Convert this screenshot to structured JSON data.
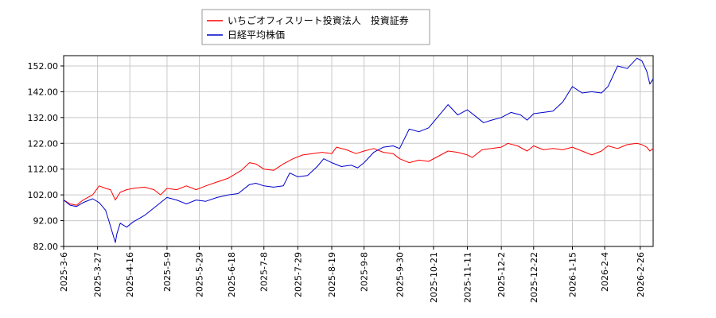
{
  "chart_data": {
    "type": "line",
    "title": "",
    "xlabel": "",
    "ylabel": "",
    "ylim": [
      82,
      156
    ],
    "yticks": [
      82.0,
      92.0,
      102.0,
      112.0,
      122.0,
      132.0,
      142.0,
      152.0
    ],
    "ytick_labels": [
      "82.00",
      "92.00",
      "102.00",
      "112.00",
      "122.00",
      "132.00",
      "142.00",
      "152.00"
    ],
    "xlim": [
      "2025-03-06",
      "2026-03-06"
    ],
    "xticks": [
      "2025-3-6",
      "2025-3-27",
      "2025-4-16",
      "2025-5-9",
      "2025-5-29",
      "2025-6-18",
      "2025-7-8",
      "2025-7-29",
      "2025-8-19",
      "2025-9-8",
      "2025-9-30",
      "2025-10-21",
      "2025-11-11",
      "2025-12-2",
      "2025-12-22",
      "2026-1-15",
      "2026-2-4",
      "2026-2-26"
    ],
    "grid": true,
    "legend_position": "top",
    "series": [
      {
        "name": "いちごオフィスリート投資法人　投資証券",
        "color": "#ff0000",
        "points": [
          [
            "2025-03-06",
            100.0
          ],
          [
            "2025-03-10",
            98.5
          ],
          [
            "2025-03-14",
            98.0
          ],
          [
            "2025-03-18",
            100.0
          ],
          [
            "2025-03-24",
            102.0
          ],
          [
            "2025-03-28",
            105.5
          ],
          [
            "2025-04-01",
            104.5
          ],
          [
            "2025-04-04",
            104.0
          ],
          [
            "2025-04-07",
            100.0
          ],
          [
            "2025-04-10",
            103.0
          ],
          [
            "2025-04-14",
            104.0
          ],
          [
            "2025-04-18",
            104.5
          ],
          [
            "2025-04-25",
            105.0
          ],
          [
            "2025-05-01",
            104.0
          ],
          [
            "2025-05-05",
            102.0
          ],
          [
            "2025-05-09",
            104.5
          ],
          [
            "2025-05-15",
            104.0
          ],
          [
            "2025-05-21",
            105.5
          ],
          [
            "2025-05-27",
            104.0
          ],
          [
            "2025-06-02",
            105.5
          ],
          [
            "2025-06-09",
            107.0
          ],
          [
            "2025-06-16",
            108.5
          ],
          [
            "2025-06-20",
            110.0
          ],
          [
            "2025-06-24",
            111.5
          ],
          [
            "2025-06-29",
            114.5
          ],
          [
            "2025-07-03",
            114.0
          ],
          [
            "2025-07-08",
            112.0
          ],
          [
            "2025-07-14",
            111.5
          ],
          [
            "2025-07-20",
            114.0
          ],
          [
            "2025-07-26",
            116.0
          ],
          [
            "2025-08-01",
            117.5
          ],
          [
            "2025-08-07",
            118.0
          ],
          [
            "2025-08-13",
            118.5
          ],
          [
            "2025-08-19",
            118.0
          ],
          [
            "2025-08-22",
            120.5
          ],
          [
            "2025-08-28",
            119.5
          ],
          [
            "2025-09-03",
            118.0
          ],
          [
            "2025-09-08",
            119.0
          ],
          [
            "2025-09-14",
            120.0
          ],
          [
            "2025-09-20",
            118.5
          ],
          [
            "2025-09-26",
            118.0
          ],
          [
            "2025-09-30",
            116.0
          ],
          [
            "2025-10-06",
            114.5
          ],
          [
            "2025-10-12",
            115.5
          ],
          [
            "2025-10-18",
            115.0
          ],
          [
            "2025-10-24",
            117.0
          ],
          [
            "2025-10-30",
            119.0
          ],
          [
            "2025-11-05",
            118.5
          ],
          [
            "2025-11-11",
            117.5
          ],
          [
            "2025-11-14",
            116.5
          ],
          [
            "2025-11-20",
            119.5
          ],
          [
            "2025-11-26",
            120.0
          ],
          [
            "2025-12-02",
            120.5
          ],
          [
            "2025-12-06",
            122.0
          ],
          [
            "2025-12-12",
            121.0
          ],
          [
            "2025-12-18",
            119.0
          ],
          [
            "2025-12-22",
            121.0
          ],
          [
            "2025-12-28",
            119.5
          ],
          [
            "2026-01-03",
            120.0
          ],
          [
            "2026-01-09",
            119.5
          ],
          [
            "2026-01-15",
            120.5
          ],
          [
            "2026-01-21",
            119.0
          ],
          [
            "2026-01-27",
            117.5
          ],
          [
            "2026-02-02",
            119.0
          ],
          [
            "2026-02-06",
            121.0
          ],
          [
            "2026-02-12",
            120.0
          ],
          [
            "2026-02-18",
            121.5
          ],
          [
            "2026-02-24",
            122.0
          ],
          [
            "2026-02-27",
            121.5
          ],
          [
            "2026-03-02",
            120.5
          ],
          [
            "2026-03-04",
            119.0
          ],
          [
            "2026-03-06",
            120.0
          ]
        ]
      },
      {
        "name": "日経平均株価",
        "color": "#0000cc",
        "points": [
          [
            "2025-03-06",
            100.0
          ],
          [
            "2025-03-10",
            98.0
          ],
          [
            "2025-03-14",
            97.5
          ],
          [
            "2025-03-18",
            99.0
          ],
          [
            "2025-03-24",
            100.5
          ],
          [
            "2025-03-28",
            99.0
          ],
          [
            "2025-04-01",
            96.0
          ],
          [
            "2025-04-03",
            92.0
          ],
          [
            "2025-04-07",
            83.5
          ],
          [
            "2025-04-08",
            87.0
          ],
          [
            "2025-04-10",
            91.0
          ],
          [
            "2025-04-14",
            89.5
          ],
          [
            "2025-04-18",
            91.5
          ],
          [
            "2025-04-25",
            94.0
          ],
          [
            "2025-05-01",
            97.0
          ],
          [
            "2025-05-09",
            101.0
          ],
          [
            "2025-05-15",
            100.0
          ],
          [
            "2025-05-21",
            98.5
          ],
          [
            "2025-05-27",
            100.0
          ],
          [
            "2025-06-02",
            99.5
          ],
          [
            "2025-06-09",
            101.0
          ],
          [
            "2025-06-16",
            102.0
          ],
          [
            "2025-06-22",
            102.5
          ],
          [
            "2025-06-29",
            106.0
          ],
          [
            "2025-07-03",
            106.5
          ],
          [
            "2025-07-08",
            105.5
          ],
          [
            "2025-07-14",
            105.0
          ],
          [
            "2025-07-20",
            105.5
          ],
          [
            "2025-07-24",
            110.5
          ],
          [
            "2025-07-29",
            109.0
          ],
          [
            "2025-08-04",
            109.5
          ],
          [
            "2025-08-10",
            113.0
          ],
          [
            "2025-08-14",
            116.0
          ],
          [
            "2025-08-19",
            114.5
          ],
          [
            "2025-08-25",
            113.0
          ],
          [
            "2025-08-31",
            113.5
          ],
          [
            "2025-09-04",
            112.5
          ],
          [
            "2025-09-08",
            114.5
          ],
          [
            "2025-09-14",
            118.5
          ],
          [
            "2025-09-20",
            120.5
          ],
          [
            "2025-09-26",
            121.0
          ],
          [
            "2025-09-30",
            120.0
          ],
          [
            "2025-10-06",
            127.5
          ],
          [
            "2025-10-12",
            126.5
          ],
          [
            "2025-10-18",
            128.0
          ],
          [
            "2025-10-24",
            132.5
          ],
          [
            "2025-10-30",
            137.0
          ],
          [
            "2025-11-05",
            133.0
          ],
          [
            "2025-11-11",
            135.0
          ],
          [
            "2025-11-17",
            132.0
          ],
          [
            "2025-11-21",
            130.0
          ],
          [
            "2025-11-26",
            131.0
          ],
          [
            "2025-12-02",
            132.0
          ],
          [
            "2025-12-08",
            134.0
          ],
          [
            "2025-12-14",
            133.0
          ],
          [
            "2025-12-18",
            131.0
          ],
          [
            "2025-12-22",
            133.5
          ],
          [
            "2025-12-28",
            134.0
          ],
          [
            "2026-01-03",
            134.5
          ],
          [
            "2026-01-09",
            138.0
          ],
          [
            "2026-01-15",
            144.0
          ],
          [
            "2026-01-21",
            141.5
          ],
          [
            "2026-01-27",
            142.0
          ],
          [
            "2026-02-02",
            141.5
          ],
          [
            "2026-02-06",
            144.0
          ],
          [
            "2026-02-12",
            152.0
          ],
          [
            "2026-02-18",
            151.0
          ],
          [
            "2026-02-24",
            155.0
          ],
          [
            "2026-02-27",
            154.0
          ],
          [
            "2026-03-02",
            150.0
          ],
          [
            "2026-03-04",
            145.0
          ],
          [
            "2026-03-06",
            147.0
          ]
        ]
      }
    ]
  }
}
